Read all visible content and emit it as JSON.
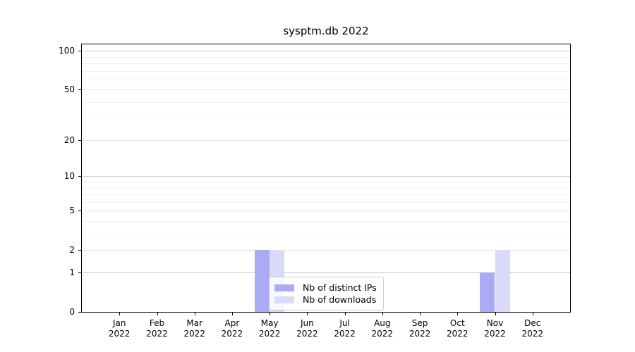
{
  "chart_data": {
    "type": "bar",
    "title": "sysptm.db 2022",
    "categories": [
      "Jan",
      "Feb",
      "Mar",
      "Apr",
      "May",
      "Jun",
      "Jul",
      "Aug",
      "Sep",
      "Oct",
      "Nov",
      "Dec"
    ],
    "category_second_line": "2022",
    "series": [
      {
        "name": "Nb of distinct IPs",
        "color": "#aaaaf5",
        "values": [
          0,
          0,
          0,
          0,
          2,
          0,
          0,
          0,
          0,
          0,
          1,
          0
        ]
      },
      {
        "name": "Nb of downloads",
        "color": "#dadaf8",
        "values": [
          0,
          0,
          0,
          0,
          2,
          0,
          0,
          0,
          0,
          0,
          2,
          0
        ]
      }
    ],
    "xlabel": "",
    "ylabel": "",
    "y_scale": "log1p",
    "ylim": [
      0,
      112.5
    ],
    "y_ticks": [
      0,
      1,
      2,
      5,
      10,
      20,
      50,
      100
    ],
    "y_minor_ticks": [
      3,
      4,
      6,
      7,
      8,
      9,
      30,
      40,
      60,
      70,
      80,
      90
    ],
    "grid": "horizontal",
    "legend_position": "lower center (inside plot)",
    "colors": {
      "axis": "#000000",
      "grid_decade": "#c8c8c8",
      "grid_major": "#e7e7e7",
      "grid_minor": "#f1f1f1",
      "legend_border": "#cccccc",
      "text": "#000000"
    }
  }
}
